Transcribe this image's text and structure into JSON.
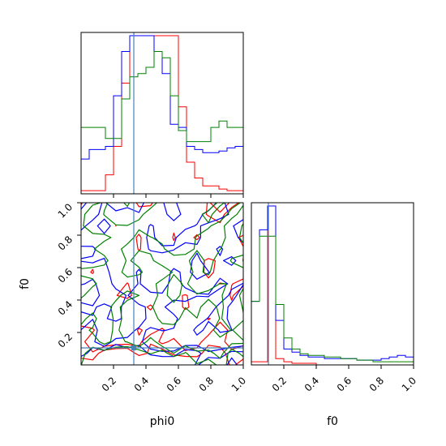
{
  "chart_data": {
    "type": "corner",
    "parameters": [
      "phi0",
      "f0"
    ],
    "truth": {
      "phi0": 0.325,
      "f0": 0.105
    },
    "truth_color": "#4682b4",
    "range": {
      "phi0": [
        0,
        1
      ],
      "f0": [
        0,
        1
      ]
    },
    "ticks": {
      "phi0": [
        "0.2",
        "0.4",
        "0.6",
        "0.8",
        "1.0"
      ],
      "f0": [
        "0.2",
        "0.4",
        "0.6",
        "0.8",
        "1.0"
      ]
    },
    "xlabels": {
      "phi0": "phi0",
      "f0": "f0"
    },
    "ylabels": {
      "f0": "f0"
    },
    "series": [
      {
        "color": "#ff0000",
        "hist_phi0": [
          0.02,
          0.02,
          0.02,
          0.12,
          0.3,
          0.7,
          1.0,
          1.0,
          1.0,
          1.0,
          1.0,
          1.0,
          0.55,
          0.2,
          0.1,
          0.05,
          0.05,
          0.03,
          0.02,
          0.02
        ],
        "hist_f0": [
          0.02,
          0.02,
          1.0,
          0.04,
          0.02,
          0.01,
          0.01,
          0.01,
          0.0,
          0.0,
          0.0,
          0.0,
          0.0,
          0.0,
          0.0,
          0.0,
          0.0,
          0.0,
          0.0,
          0.0
        ]
      },
      {
        "color": "#0000ff",
        "hist_phi0": [
          0.22,
          0.28,
          0.28,
          0.3,
          0.62,
          0.9,
          1.0,
          1.0,
          1.0,
          0.9,
          0.76,
          0.44,
          0.42,
          0.3,
          0.28,
          0.26,
          0.26,
          0.27,
          0.29,
          0.3
        ],
        "hist_f0": [
          0.4,
          0.85,
          1.0,
          0.28,
          0.1,
          0.08,
          0.06,
          0.05,
          0.05,
          0.04,
          0.04,
          0.04,
          0.04,
          0.03,
          0.03,
          0.03,
          0.04,
          0.05,
          0.06,
          0.05
        ]
      },
      {
        "color": "#008000",
        "hist_phi0": [
          0.42,
          0.42,
          0.42,
          0.35,
          0.35,
          0.6,
          0.74,
          0.76,
          0.8,
          0.9,
          0.86,
          0.62,
          0.4,
          0.33,
          0.33,
          0.33,
          0.42,
          0.46,
          0.42,
          0.42
        ],
        "hist_f0": [
          0.4,
          0.81,
          0.81,
          0.38,
          0.17,
          0.1,
          0.07,
          0.06,
          0.06,
          0.05,
          0.05,
          0.04,
          0.04,
          0.03,
          0.03,
          0.02,
          0.02,
          0.02,
          0.02,
          0.02
        ]
      }
    ]
  }
}
